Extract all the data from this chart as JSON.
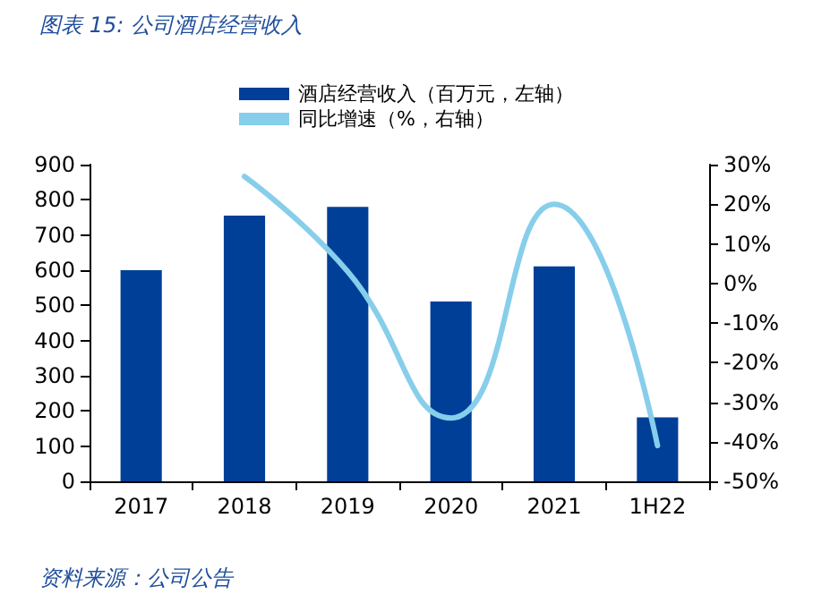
{
  "chart_data": {
    "type": "bar",
    "title": "图表 15: 公司酒店经营收入",
    "categories": [
      "2017",
      "2018",
      "2019",
      "2020",
      "2021",
      "1H22"
    ],
    "series": [
      {
        "name": "酒店经营收入（百万元，左轴）",
        "color": "#003f98",
        "values": [
          600,
          755,
          780,
          511,
          611,
          182
        ]
      },
      {
        "name": "同比增速（%，右轴）",
        "type": "line",
        "axis": "y2",
        "color": "#87ceeb",
        "values": [
          null,
          27,
          3,
          -34,
          20,
          -41
        ]
      }
    ],
    "ylim": [
      0,
      900
    ],
    "yticks": [
      0,
      100,
      200,
      300,
      400,
      500,
      600,
      700,
      800,
      900
    ],
    "y2lim": [
      -50,
      30
    ],
    "y2ticks": [
      {
        "value": -50,
        "label": "-50%"
      },
      {
        "value": -40,
        "label": "-40%"
      },
      {
        "value": -30,
        "label": "-30%"
      },
      {
        "value": -20,
        "label": "-20%"
      },
      {
        "value": -10,
        "label": "-10%"
      },
      {
        "value": 0,
        "label": "0%"
      },
      {
        "value": 10,
        "label": "10%"
      },
      {
        "value": 20,
        "label": "20%"
      },
      {
        "value": 30,
        "label": "30%"
      }
    ],
    "grid": false,
    "legend": "top",
    "marker": "none",
    "annotations": [
      "资料来源：公司公告"
    ]
  }
}
